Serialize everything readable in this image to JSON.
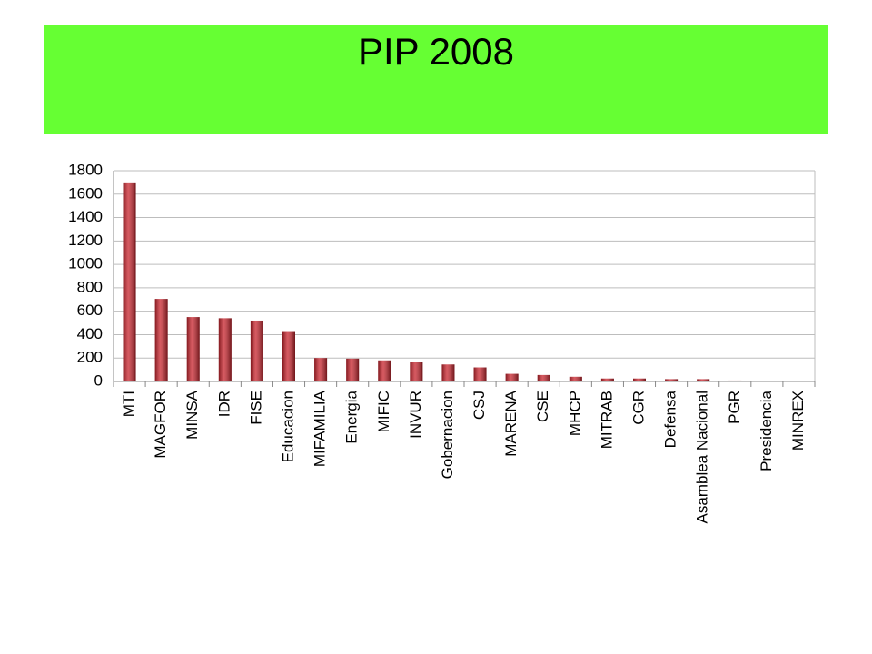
{
  "chart_data": {
    "type": "bar",
    "title": "PIP 2008",
    "categories": [
      "MTI",
      "MAGFOR",
      "MINSA",
      "IDR",
      "FISE",
      "Educacion",
      "MIFAMILIA",
      "Energia",
      "MIFIC",
      "INVUR",
      "Gobernacion",
      "CSJ",
      "MARENA",
      "CSE",
      "MHCP",
      "MITRAB",
      "CGR",
      "Defensa",
      "Asamblea Nacional",
      "PGR",
      "Presidencia",
      "MINREX"
    ],
    "values": [
      1700,
      705,
      550,
      540,
      520,
      430,
      200,
      195,
      180,
      165,
      145,
      120,
      65,
      55,
      40,
      25,
      25,
      20,
      20,
      8,
      5,
      3
    ],
    "color": "#c8232c",
    "ylim": [
      0,
      1800
    ],
    "yticks": [
      0,
      200,
      400,
      600,
      800,
      1000,
      1200,
      1400,
      1600,
      1800
    ],
    "grid": true
  }
}
